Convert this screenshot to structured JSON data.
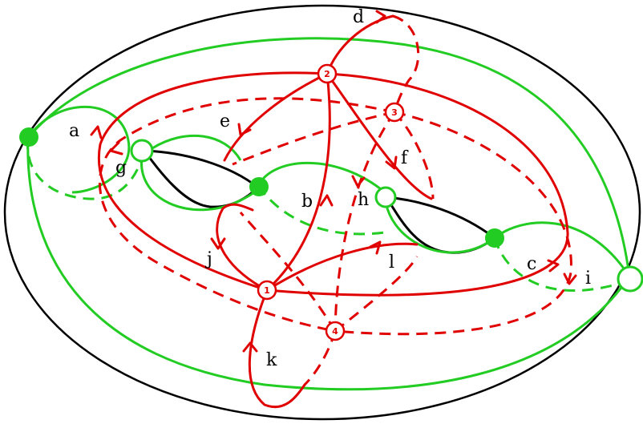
{
  "colors": {
    "curve_red": "#e00000",
    "curve_green": "#22cc22",
    "outline": "#000000",
    "background": "#ffffff"
  },
  "curve_labels": [
    "a",
    "b",
    "c",
    "d",
    "e",
    "f",
    "g",
    "h",
    "i",
    "j",
    "k",
    "l"
  ],
  "vertex_labels": [
    "1",
    "2",
    "3",
    "4"
  ]
}
